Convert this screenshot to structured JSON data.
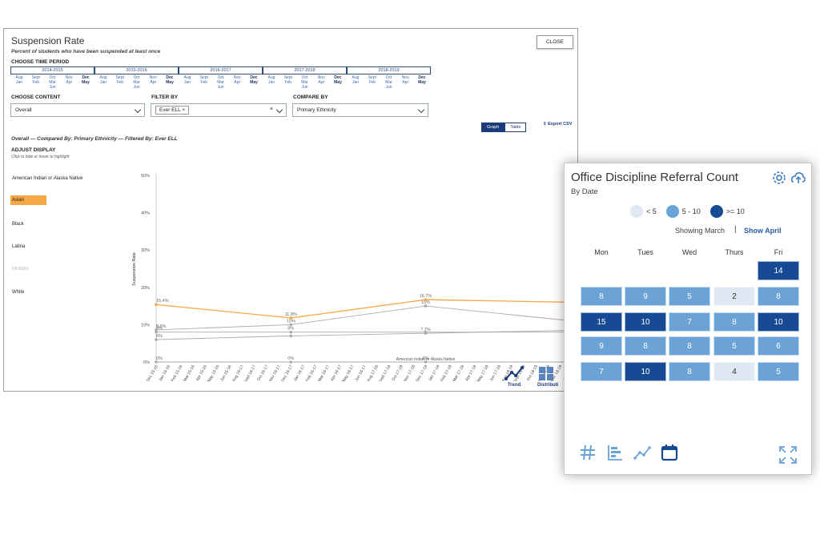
{
  "suspension": {
    "title": "Suspension Rate",
    "subtitle": "Percent of students who have been suspended at least once",
    "close_label": "CLOSE",
    "time_period_label": "CHOOSE TIME PERIOD",
    "periods": [
      {
        "label": "2014-2015",
        "months": [
          "Aug Jan",
          "Sept Feb",
          "Oct Mar Jun",
          "Nov Apr",
          "Dec May"
        ]
      },
      {
        "label": "2015-2016",
        "months": [
          "Aug Jan",
          "Sept Feb",
          "Oct Mar Jun",
          "Nov Apr",
          "Dec May"
        ]
      },
      {
        "label": "2016-2017",
        "months": [
          "Aug Jan",
          "Sept Feb",
          "Oct Mar Jun",
          "Nov Apr",
          "Dec May"
        ]
      },
      {
        "label": "2017-2018",
        "months": [
          "Aug Jan",
          "Sept Feb",
          "Oct Mar Jun",
          "Nov Apr",
          "Dec May"
        ]
      },
      {
        "label": "2018-2019",
        "months": [
          "Aug Jan",
          "Sept Feb",
          "Oct Mar Jun",
          "Nov Apr",
          "Dec May"
        ]
      }
    ],
    "content_label": "CHOOSE CONTENT",
    "content_value": "Overall",
    "filter_label": "FILTER BY",
    "filter_chip": "Ever ELL",
    "compare_label": "COMPARE BY",
    "compare_value": "Primary Ethnicity",
    "toggle_graph": "Graph",
    "toggle_table": "Table",
    "export_label": "Export CSV",
    "description": "Overall — Compared By: Primary Ethnicity — Filtered By: Ever ELL",
    "adjust_label": "ADJUST DISPLAY",
    "adjust_hint": "Click to hide or hover to highlight",
    "legend": [
      "American Indian or Alaska Native",
      "Asian",
      "Black",
      "Latina",
      "Multiple",
      "White"
    ],
    "highlighted_group": "Asian",
    "dimmed_group": "Multiple",
    "trend_label": "Trend",
    "distribution_label": "Distributi",
    "colors": {
      "highlight": "#f4a742",
      "accent": "#1a3c7a",
      "line_gray": "#aaaaaa"
    }
  },
  "chart_data": {
    "type": "line",
    "ylabel": "Suspension Rate",
    "ylim": [
      0,
      50
    ],
    "y_ticks": [
      "0%",
      "10%",
      "20%",
      "30%",
      "40%",
      "50%"
    ],
    "x": [
      "Dec 15-16",
      "Jan 15-16",
      "Feb 15-16",
      "Mar 15-16",
      "Apr 15-16",
      "May 15-16",
      "Jun 15-16",
      "Aug 16-17",
      "Sept 16-17",
      "Oct 16-17",
      "Nov 16-17",
      "Dec 16-17",
      "Jan 16-17",
      "Feb 16-17",
      "Mar 16-17",
      "Apr 16-17",
      "May 16-17",
      "Jun 16-17",
      "Aug 17-18",
      "Sept 17-18",
      "Oct 17-18",
      "Nov 17-18",
      "Dec 17-18",
      "Jan 17-18",
      "Feb 17-18",
      "Mar 17-18",
      "Apr 17-18",
      "May 17-18",
      "Jun 17-18",
      "Aug 18-19",
      "Sept 18-19",
      "Oct 18-19",
      "Nov 18-19",
      "Dec 18-19",
      "Jan 18-19"
    ],
    "series": [
      {
        "name": "Asian",
        "color": "#f4a742",
        "points": [
          [
            0,
            15.4
          ],
          [
            11,
            11.8
          ],
          [
            22,
            16.7
          ],
          [
            34,
            16
          ]
        ],
        "labels": [
          "15.4%",
          "11.8%",
          "16.7%",
          ""
        ]
      },
      {
        "name": "",
        "color": "#aaaaaa",
        "points": [
          [
            0,
            8.6
          ],
          [
            11,
            10
          ],
          [
            22,
            15
          ],
          [
            34,
            11
          ]
        ],
        "labels": [
          "8.6%",
          "10%",
          "15%",
          ""
        ]
      },
      {
        "name": "",
        "color": "#aaaaaa",
        "points": [
          [
            0,
            8
          ],
          [
            11,
            8
          ],
          [
            22,
            8
          ],
          [
            34,
            8
          ]
        ],
        "labels": [
          "8%",
          "8%",
          "",
          ""
        ]
      },
      {
        "name": "",
        "color": "#aaaaaa",
        "points": [
          [
            0,
            6
          ],
          [
            11,
            7
          ],
          [
            22,
            7.7
          ],
          [
            34,
            8.5
          ]
        ],
        "labels": [
          "6%",
          "",
          "7.7%",
          ""
        ]
      },
      {
        "name": "American Indian or Alaska Native",
        "color": "#aaaaaa",
        "points": [
          [
            0,
            0
          ],
          [
            11,
            0
          ],
          [
            22,
            0
          ],
          [
            34,
            0
          ]
        ],
        "labels": [
          "0%",
          "0%",
          "0%",
          ""
        ]
      }
    ]
  },
  "referral": {
    "title": "Office Discipline Referral Count",
    "subtitle": "By Date",
    "legend": [
      {
        "label": "< 5",
        "color": "#e0e9f3"
      },
      {
        "label": "5 - 10",
        "color": "#6ba3d6"
      },
      {
        "label": ">= 10",
        "color": "#174a94"
      }
    ],
    "showing": "Showing March",
    "separator": "|",
    "show_next": "Show April",
    "days": [
      "Mon",
      "Tues",
      "Wed",
      "Thurs",
      "Fri"
    ],
    "weeks": [
      [
        null,
        null,
        null,
        null,
        14
      ],
      [
        8,
        9,
        5,
        2,
        8
      ],
      [
        15,
        10,
        7,
        8,
        10
      ],
      [
        9,
        8,
        8,
        5,
        6
      ],
      [
        7,
        10,
        8,
        4,
        5
      ]
    ],
    "icons": {
      "settings": "gear-icon",
      "export": "cloud-upload-icon",
      "number_view": "hash-icon",
      "bar_view": "bar-chart-icon",
      "trend_view": "trend-line-icon",
      "calendar_view": "calendar-icon",
      "expand": "expand-icon"
    }
  }
}
